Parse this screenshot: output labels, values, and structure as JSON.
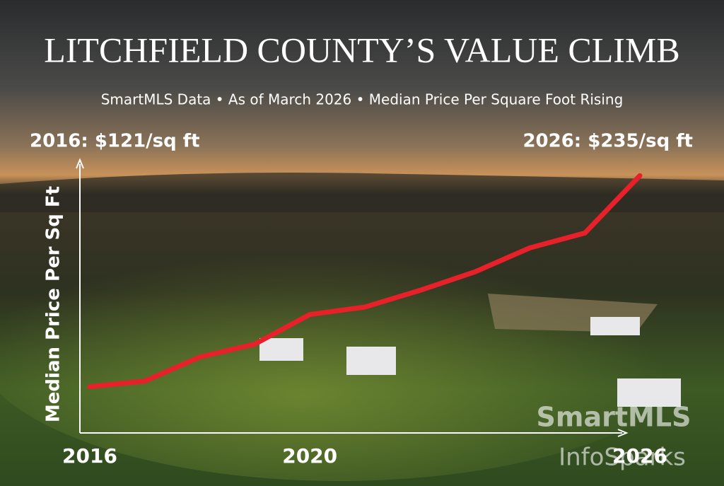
{
  "chart_data": {
    "type": "line",
    "title": "LITCHFIELD COUNTY’S VALUE CLIMB",
    "subtitle": "SmartMLS Data • As of March 2026 • Median Price Per Square Foot Rising",
    "y_label": "Median Price Per Sq Ft",
    "annotations": [
      "2016: $121/sq ft",
      "2026: $235/sq ft"
    ],
    "watermark": [
      "SmartMLS",
      "InfoSparks"
    ],
    "categories": [
      "2016",
      null,
      null,
      null,
      "2020",
      null,
      null,
      null,
      null,
      null,
      "2026"
    ],
    "values": [
      121,
      124,
      137,
      144,
      160,
      164,
      173,
      183,
      196,
      204,
      235
    ],
    "color": "#e8202a",
    "ylim": [
      96,
      242
    ]
  }
}
